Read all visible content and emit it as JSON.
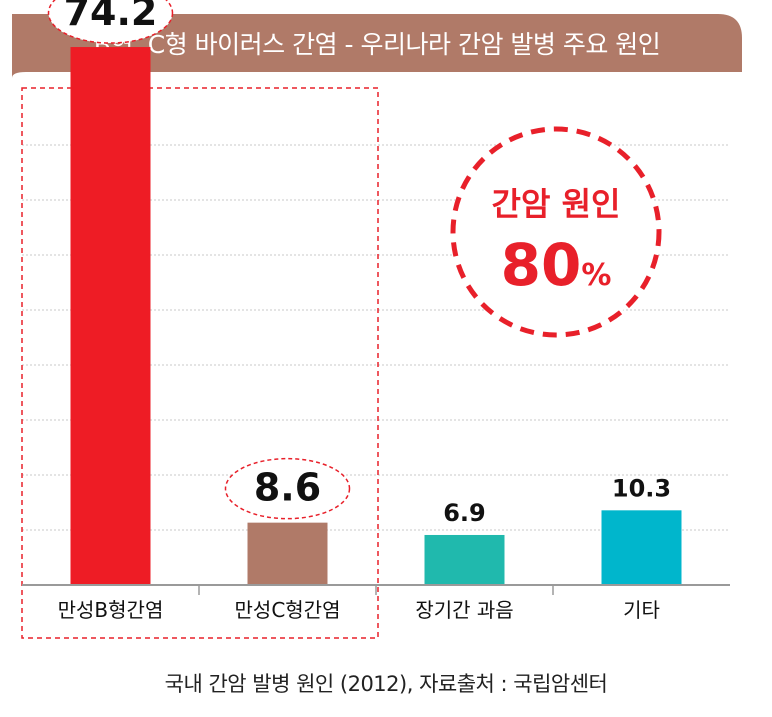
{
  "header": {
    "title": "B형, C형 바이러스 간염 - 우리나라 간암 발병 주요 원인"
  },
  "callout": {
    "line1": "간암 원인",
    "value": "80",
    "unit": "%"
  },
  "footer": {
    "source": "국내 간암 발병 원인 (2012), 자료출처 : 국립암센터"
  },
  "colors": {
    "title_bg": "#b07a68",
    "accent_red": "#e8202a",
    "brown": "#b07a68",
    "teal": "#20b9ad",
    "cyan": "#00b6cc",
    "grid": "#bdbdbd"
  },
  "chart_data": {
    "type": "bar",
    "categories": [
      "만성B형간염",
      "만성C형간염",
      "장기간 과음",
      "기타"
    ],
    "values": [
      74.2,
      8.6,
      6.9,
      10.3
    ],
    "value_labels": [
      "74.2",
      "8.6",
      "6.9",
      "10.3"
    ],
    "bar_colors": [
      "#ee1c25",
      "#b07a68",
      "#20b9ad",
      "#00b6cc"
    ],
    "ylim": [
      0,
      80
    ],
    "grid": true,
    "highlighted_categories": [
      "만성B형간염",
      "만성C형간염"
    ]
  }
}
